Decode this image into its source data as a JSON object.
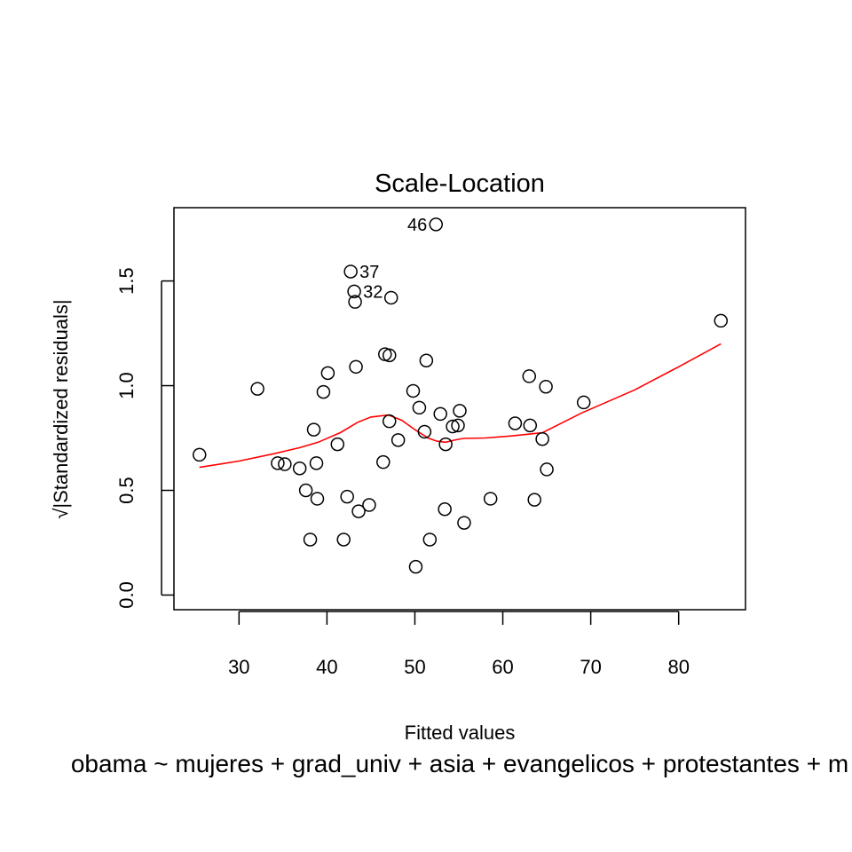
{
  "chart_data": {
    "type": "scatter",
    "title": "Scale-Location",
    "xlabel": "Fitted values",
    "ylabel": "√|Standardized residuals|",
    "subtitle": "obama ~ mujeres + grad_univ + asia + evangelicos + protestantes + m",
    "xlim": [
      22.6,
      87.6
    ],
    "ylim": [
      -0.07,
      1.85
    ],
    "xticks": [
      30,
      40,
      50,
      60,
      70,
      80
    ],
    "yticks": [
      0.0,
      0.5,
      1.0,
      1.5
    ],
    "ytick_labels": [
      "0.0",
      "0.5",
      "1.0",
      "1.5"
    ],
    "grid": false,
    "point_style": "open-circle",
    "colors": {
      "points": "#000000",
      "smoother": "#ff0000"
    },
    "points": [
      {
        "x": 25.5,
        "y": 0.67
      },
      {
        "x": 32.1,
        "y": 0.985
      },
      {
        "x": 34.4,
        "y": 0.63
      },
      {
        "x": 35.2,
        "y": 0.625
      },
      {
        "x": 36.9,
        "y": 0.605
      },
      {
        "x": 37.6,
        "y": 0.5
      },
      {
        "x": 38.1,
        "y": 0.265
      },
      {
        "x": 38.5,
        "y": 0.79
      },
      {
        "x": 38.8,
        "y": 0.63
      },
      {
        "x": 38.9,
        "y": 0.46
      },
      {
        "x": 39.6,
        "y": 0.97
      },
      {
        "x": 40.1,
        "y": 1.06
      },
      {
        "x": 41.2,
        "y": 0.72
      },
      {
        "x": 41.9,
        "y": 0.265
      },
      {
        "x": 42.3,
        "y": 0.47
      },
      {
        "x": 42.7,
        "y": 1.545,
        "label": "37"
      },
      {
        "x": 43.1,
        "y": 1.45,
        "label": "32"
      },
      {
        "x": 43.2,
        "y": 1.4
      },
      {
        "x": 43.3,
        "y": 1.09
      },
      {
        "x": 43.6,
        "y": 0.4
      },
      {
        "x": 44.8,
        "y": 0.43
      },
      {
        "x": 46.4,
        "y": 0.635
      },
      {
        "x": 46.6,
        "y": 1.15
      },
      {
        "x": 47.1,
        "y": 1.145
      },
      {
        "x": 47.1,
        "y": 0.83
      },
      {
        "x": 47.3,
        "y": 1.42
      },
      {
        "x": 48.1,
        "y": 0.74
      },
      {
        "x": 49.8,
        "y": 0.975
      },
      {
        "x": 50.1,
        "y": 0.135
      },
      {
        "x": 50.5,
        "y": 0.895
      },
      {
        "x": 51.1,
        "y": 0.78
      },
      {
        "x": 51.3,
        "y": 1.12
      },
      {
        "x": 51.7,
        "y": 0.265
      },
      {
        "x": 52.4,
        "y": 1.77,
        "label": "46"
      },
      {
        "x": 52.9,
        "y": 0.865
      },
      {
        "x": 53.4,
        "y": 0.41
      },
      {
        "x": 53.5,
        "y": 0.72
      },
      {
        "x": 54.3,
        "y": 0.805
      },
      {
        "x": 54.9,
        "y": 0.81
      },
      {
        "x": 55.1,
        "y": 0.88
      },
      {
        "x": 55.6,
        "y": 0.345
      },
      {
        "x": 58.6,
        "y": 0.46
      },
      {
        "x": 61.4,
        "y": 0.82
      },
      {
        "x": 63.0,
        "y": 1.045
      },
      {
        "x": 63.1,
        "y": 0.81
      },
      {
        "x": 63.6,
        "y": 0.455
      },
      {
        "x": 64.5,
        "y": 0.745
      },
      {
        "x": 64.9,
        "y": 0.995
      },
      {
        "x": 65.0,
        "y": 0.6
      },
      {
        "x": 69.2,
        "y": 0.92
      },
      {
        "x": 84.8,
        "y": 1.31
      }
    ],
    "smoother": {
      "x": [
        25.5,
        30,
        34,
        37,
        39,
        41.5,
        43.5,
        45,
        47,
        48.5,
        50,
        51.5,
        52.5,
        53.5,
        54.5,
        55.5,
        58,
        61,
        64.5,
        69,
        75,
        80,
        84.8
      ],
      "y": [
        0.61,
        0.64,
        0.675,
        0.705,
        0.73,
        0.775,
        0.825,
        0.85,
        0.86,
        0.835,
        0.79,
        0.75,
        0.735,
        0.73,
        0.74,
        0.748,
        0.75,
        0.76,
        0.775,
        0.87,
        0.98,
        1.09,
        1.2
      ]
    }
  }
}
